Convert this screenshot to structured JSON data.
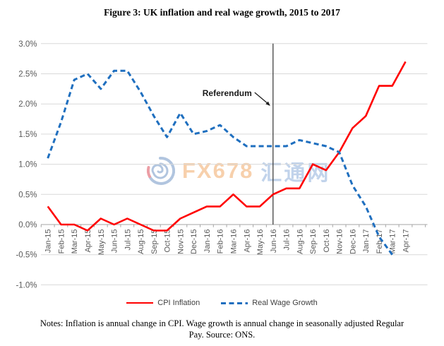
{
  "figure": {
    "title": "Figure 3: UK inflation and real wage growth, 2015 to 2017"
  },
  "chart_data": {
    "type": "line",
    "title": "Figure 3: UK inflation and real wage growth, 2015 to 2017",
    "categories": [
      "Jan-15",
      "Feb-15",
      "Mar-15",
      "Apr-15",
      "May-15",
      "Jun-15",
      "Jul-15",
      "Aug-15",
      "Sep-15",
      "Oct-15",
      "Nov-15",
      "Dec-15",
      "Jan-16",
      "Feb-16",
      "Mar-16",
      "Apr-16",
      "May-16",
      "Jun-16",
      "Jul-16",
      "Aug-16",
      "Sep-16",
      "Oct-16",
      "Nov-16",
      "Dec-16",
      "Jan-17",
      "Feb-17",
      "Mar-17",
      "Apr-17"
    ],
    "series": [
      {
        "name": "CPI Inflation",
        "style": "solid",
        "color": "#FF0000",
        "values": [
          0.3,
          0.0,
          0.0,
          -0.1,
          0.1,
          0.0,
          0.1,
          0.0,
          -0.1,
          -0.1,
          0.1,
          0.2,
          0.3,
          0.3,
          0.5,
          0.3,
          0.3,
          0.5,
          0.6,
          0.6,
          1.0,
          0.9,
          1.2,
          1.6,
          1.8,
          2.3,
          2.3,
          2.7
        ]
      },
      {
        "name": "Real Wage Growth",
        "style": "dashed",
        "color": "#1F6FBF",
        "values": [
          1.1,
          1.7,
          2.4,
          2.5,
          2.25,
          2.55,
          2.55,
          2.2,
          1.8,
          1.45,
          1.85,
          1.5,
          1.55,
          1.65,
          1.45,
          1.3,
          1.3,
          1.3,
          1.3,
          1.4,
          1.35,
          1.3,
          1.2,
          0.65,
          0.3,
          -0.2,
          -0.5,
          null
        ]
      }
    ],
    "ylim": [
      -1.0,
      3.0
    ],
    "ytick_labels": [
      "3.0%",
      "2.5%",
      "2.0%",
      "1.5%",
      "1.0%",
      "0.5%",
      "0.0%",
      "-0.5%",
      "-1.0%"
    ],
    "ytick_values": [
      3.0,
      2.5,
      2.0,
      1.5,
      1.0,
      0.5,
      0.0,
      -0.5,
      -1.0
    ],
    "grid": true,
    "legend_position": "bottom",
    "annotation": {
      "label": "Referendum",
      "category": "Jun-16"
    }
  },
  "watermark": {
    "logo": "fx678-swirl-logo",
    "brand": "FX678",
    "cjk": "汇通网",
    "brand_color": "#F6C89E",
    "cjk_color": "#B7CCE8"
  },
  "notes": {
    "line1": "Notes: Inflation is annual change in CPI. Wage growth is annual change in seasonally adjusted Regular",
    "line2": "Pay. Source: ONS."
  }
}
